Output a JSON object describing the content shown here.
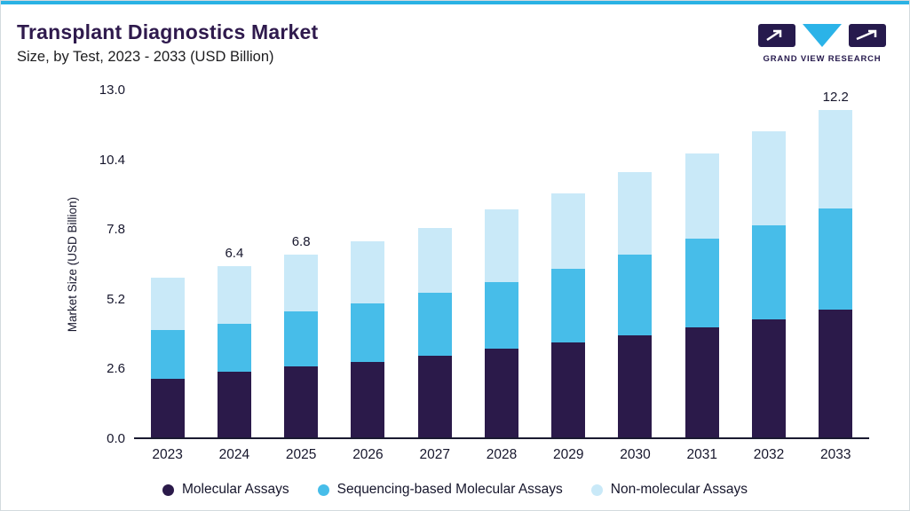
{
  "accent_color": "#2ab2e4",
  "header": {
    "title": "Transplant Diagnostics Market",
    "subtitle": "Size, by Test, 2023 - 2033 (USD Billion)",
    "logo_text": "GRAND VIEW RESEARCH"
  },
  "chart_data": {
    "type": "bar",
    "stacked": true,
    "title": "Transplant Diagnostics Market Size, by Test, 2023 - 2033 (USD Billion)",
    "xlabel": "",
    "ylabel": "Market Size (USD Billion)",
    "ylim": [
      0,
      13.0
    ],
    "yticks": [
      0.0,
      2.6,
      5.2,
      7.8,
      10.4,
      13.0
    ],
    "grid": false,
    "legend_position": "bottom",
    "categories": [
      "2023",
      "2024",
      "2025",
      "2026",
      "2027",
      "2028",
      "2029",
      "2030",
      "2031",
      "2032",
      "2033"
    ],
    "series": [
      {
        "name": "Molecular Assays",
        "color": "#2b1a4a",
        "values": [
          2.2,
          2.45,
          2.65,
          2.8,
          3.05,
          3.3,
          3.55,
          3.8,
          4.1,
          4.4,
          4.75
        ]
      },
      {
        "name": "Sequencing-based Molecular Assays",
        "color": "#47bde9",
        "values": [
          1.8,
          1.8,
          2.05,
          2.2,
          2.35,
          2.5,
          2.75,
          3.0,
          3.3,
          3.5,
          3.8
        ]
      },
      {
        "name": "Non-molecular Assays",
        "color": "#c9e9f8",
        "values": [
          1.95,
          2.15,
          2.1,
          2.3,
          2.4,
          2.7,
          2.8,
          3.1,
          3.2,
          3.5,
          3.65
        ]
      }
    ],
    "totals_labels": {
      "2024": "6.4",
      "2025": "6.8",
      "2033": "12.2"
    }
  }
}
